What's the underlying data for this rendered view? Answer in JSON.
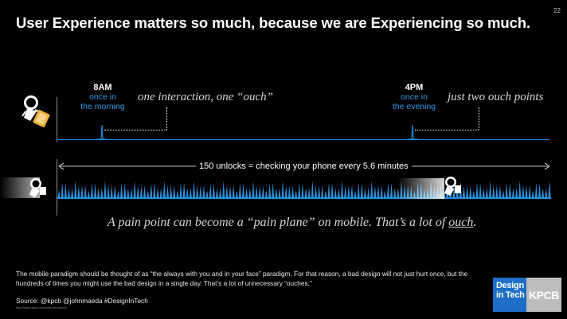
{
  "slide": {
    "title": "User Experience matters so much, because we are Experiencing so much.",
    "number": "22"
  },
  "timeline": {
    "morning": {
      "time": "8AM",
      "label_line1": "once in",
      "label_line2": "the morning"
    },
    "evening": {
      "time": "4PM",
      "label_line1": "once in",
      "label_line2": "the evening"
    },
    "caption_left": "one interaction, one “ouch”",
    "caption_right": "just two ouch points",
    "unlocks_label": "150 unlocks = checking your phone every 5.6 minutes"
  },
  "pain": {
    "text_before": "A pain point can become a “pain plane” on mobile. That’s a lot of ",
    "text_ouch": "ouch",
    "text_after": "."
  },
  "footer": {
    "body": "The mobile paradigm should be thought of as “the always with you and in your face” paradigm. For that reason, a bad design will not just hurt once, but the hundreds of times you might use the bad design in a single day. That’s a lot of unnecessary “ouches.”",
    "source": "Source: @kpcb @johnmaeda #DesignInTech",
    "tiny_url": "http://www.kpcb.com/internet-trends"
  },
  "logo": {
    "line1": "Design",
    "line2": "in Tech",
    "brand": "KPCB"
  },
  "icons": [
    "person-with-phone-icon",
    "person-with-phone-icon"
  ],
  "colors": {
    "accent_blue": "#1e8bd6",
    "background": "#000000"
  }
}
